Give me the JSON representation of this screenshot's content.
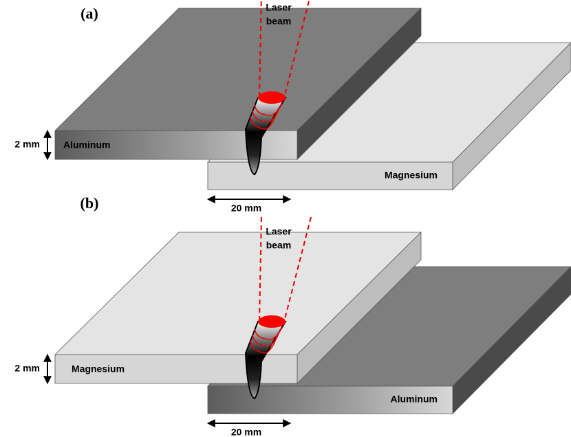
{
  "panels": [
    {
      "label": "(a)",
      "beam_label": [
        "Laser",
        "beam"
      ],
      "thickness": "2 mm",
      "top_plate": "Aluminum",
      "bottom_plate": "Magnesium",
      "overlap": "20 mm"
    },
    {
      "label": "(b)",
      "beam_label": [
        "Laser",
        "beam"
      ],
      "thickness": "2 mm",
      "top_plate": "Magnesium",
      "bottom_plate": "Aluminum",
      "overlap": "20 mm"
    }
  ]
}
